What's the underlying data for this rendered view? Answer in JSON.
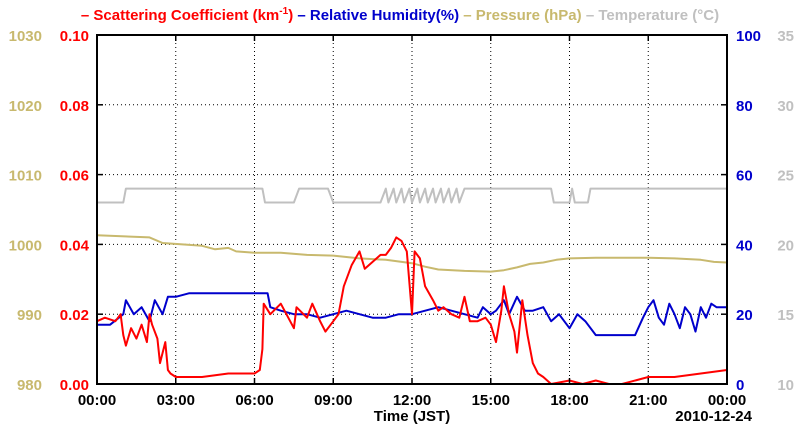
{
  "chart_data": {
    "type": "line",
    "title": "",
    "date_label": "2010-12-24",
    "xlabel": "Time (JST)",
    "x_ticks": [
      "00:00",
      "03:00",
      "06:00",
      "09:00",
      "12:00",
      "15:00",
      "18:00",
      "21:00",
      "00:00"
    ],
    "xlim_hours": [
      0,
      24
    ],
    "legend": [
      {
        "name": "Scattering Coefficient (km",
        "sup": "-1",
        "suffix": ")",
        "color": "#ff0000"
      },
      {
        "name": "Relative Humidity(%)",
        "color": "#0000cc"
      },
      {
        "name": "Pressure (hPa)",
        "color": "#c8b96e"
      },
      {
        "name": "Temperature (°C)",
        "color": "#c0c0c0"
      }
    ],
    "axes": {
      "pressure": {
        "side": "left-outer",
        "ticks": [
          "1030",
          "1020",
          "1010",
          "1000",
          "990",
          "980"
        ],
        "ylim": [
          980,
          1030
        ],
        "color": "#c8b96e"
      },
      "scattering": {
        "side": "left-inner",
        "ticks": [
          "0.10",
          "0.08",
          "0.06",
          "0.04",
          "0.02",
          "0.00"
        ],
        "ylim": [
          0,
          0.1
        ],
        "color": "#ff0000"
      },
      "humidity": {
        "side": "right-inner",
        "ticks": [
          "100",
          "80",
          "60",
          "40",
          "20",
          "0"
        ],
        "ylim": [
          0,
          100
        ],
        "color": "#0000cc"
      },
      "temperature": {
        "side": "right-outer",
        "ticks": [
          "35",
          "30",
          "25",
          "20",
          "15",
          "10"
        ],
        "ylim": [
          10,
          35
        ],
        "color": "#c0c0c0"
      }
    },
    "series": [
      {
        "name": "Scattering Coefficient",
        "axis": "scattering",
        "color": "#ff0000",
        "points": [
          [
            0,
            0.018
          ],
          [
            0.3,
            0.019
          ],
          [
            0.7,
            0.018
          ],
          [
            0.9,
            0.02
          ],
          [
            1.0,
            0.014
          ],
          [
            1.1,
            0.011
          ],
          [
            1.3,
            0.016
          ],
          [
            1.5,
            0.013
          ],
          [
            1.7,
            0.017
          ],
          [
            1.9,
            0.012
          ],
          [
            2.0,
            0.02
          ],
          [
            2.1,
            0.017
          ],
          [
            2.3,
            0.013
          ],
          [
            2.4,
            0.006
          ],
          [
            2.6,
            0.012
          ],
          [
            2.7,
            0.004
          ],
          [
            2.8,
            0.003
          ],
          [
            3.0,
            0.002
          ],
          [
            4.0,
            0.002
          ],
          [
            5.0,
            0.003
          ],
          [
            6.0,
            0.003
          ],
          [
            6.2,
            0.004
          ],
          [
            6.3,
            0.01
          ],
          [
            6.35,
            0.023
          ],
          [
            6.6,
            0.02
          ],
          [
            7.0,
            0.023
          ],
          [
            7.5,
            0.016
          ],
          [
            7.6,
            0.022
          ],
          [
            8.0,
            0.019
          ],
          [
            8.2,
            0.023
          ],
          [
            8.5,
            0.018
          ],
          [
            8.7,
            0.015
          ],
          [
            9.0,
            0.018
          ],
          [
            9.2,
            0.02
          ],
          [
            9.4,
            0.028
          ],
          [
            9.7,
            0.034
          ],
          [
            10.0,
            0.038
          ],
          [
            10.2,
            0.033
          ],
          [
            10.5,
            0.035
          ],
          [
            10.8,
            0.037
          ],
          [
            11.0,
            0.037
          ],
          [
            11.2,
            0.039
          ],
          [
            11.4,
            0.042
          ],
          [
            11.6,
            0.041
          ],
          [
            11.8,
            0.038
          ],
          [
            12.0,
            0.02
          ],
          [
            12.1,
            0.038
          ],
          [
            12.3,
            0.036
          ],
          [
            12.5,
            0.028
          ],
          [
            12.8,
            0.024
          ],
          [
            13.0,
            0.021
          ],
          [
            13.2,
            0.022
          ],
          [
            13.5,
            0.02
          ],
          [
            13.8,
            0.019
          ],
          [
            14.0,
            0.025
          ],
          [
            14.2,
            0.018
          ],
          [
            14.5,
            0.018
          ],
          [
            14.8,
            0.019
          ],
          [
            15.0,
            0.017
          ],
          [
            15.2,
            0.012
          ],
          [
            15.4,
            0.021
          ],
          [
            15.5,
            0.028
          ],
          [
            15.7,
            0.02
          ],
          [
            15.9,
            0.015
          ],
          [
            16.0,
            0.009
          ],
          [
            16.2,
            0.024
          ],
          [
            16.4,
            0.014
          ],
          [
            16.6,
            0.006
          ],
          [
            16.8,
            0.003
          ],
          [
            17.0,
            0.002
          ],
          [
            17.3,
            0.0
          ],
          [
            18.0,
            0.001
          ],
          [
            18.5,
            0.0
          ],
          [
            19.0,
            0.001
          ],
          [
            19.5,
            0.0
          ],
          [
            20.0,
            0.0
          ],
          [
            21.0,
            0.002
          ],
          [
            22.0,
            0.002
          ],
          [
            23.0,
            0.003
          ],
          [
            24.0,
            0.004
          ]
        ]
      },
      {
        "name": "Relative Humidity",
        "axis": "humidity",
        "color": "#0000cc",
        "points": [
          [
            0,
            17
          ],
          [
            0.5,
            17
          ],
          [
            1.0,
            20
          ],
          [
            1.1,
            24
          ],
          [
            1.4,
            20
          ],
          [
            1.7,
            22
          ],
          [
            2.0,
            18
          ],
          [
            2.2,
            24
          ],
          [
            2.5,
            20
          ],
          [
            2.7,
            25
          ],
          [
            3.0,
            25
          ],
          [
            3.5,
            26
          ],
          [
            4.0,
            26
          ],
          [
            5.0,
            26
          ],
          [
            6.0,
            26
          ],
          [
            6.5,
            26
          ],
          [
            6.6,
            22
          ],
          [
            7.0,
            21
          ],
          [
            7.5,
            20
          ],
          [
            8.0,
            20
          ],
          [
            8.5,
            19
          ],
          [
            9.0,
            20
          ],
          [
            9.5,
            21
          ],
          [
            10.0,
            20
          ],
          [
            10.5,
            19
          ],
          [
            11.0,
            19
          ],
          [
            11.5,
            20
          ],
          [
            12.0,
            20
          ],
          [
            12.5,
            21
          ],
          [
            13.0,
            22
          ],
          [
            13.5,
            21
          ],
          [
            14.0,
            20
          ],
          [
            14.5,
            19
          ],
          [
            14.7,
            22
          ],
          [
            15.0,
            20
          ],
          [
            15.2,
            21
          ],
          [
            15.5,
            24
          ],
          [
            15.7,
            20
          ],
          [
            16.0,
            25
          ],
          [
            16.3,
            21
          ],
          [
            16.6,
            21
          ],
          [
            17.0,
            22
          ],
          [
            17.3,
            18
          ],
          [
            17.6,
            20
          ],
          [
            18.0,
            16
          ],
          [
            18.3,
            20
          ],
          [
            18.6,
            18
          ],
          [
            19.0,
            14
          ],
          [
            19.2,
            14
          ],
          [
            20.0,
            14
          ],
          [
            20.5,
            14
          ],
          [
            20.8,
            19
          ],
          [
            21.0,
            22
          ],
          [
            21.2,
            24
          ],
          [
            21.4,
            19
          ],
          [
            21.6,
            17
          ],
          [
            21.8,
            23
          ],
          [
            22.0,
            20
          ],
          [
            22.2,
            16
          ],
          [
            22.4,
            22
          ],
          [
            22.6,
            20
          ],
          [
            22.8,
            15
          ],
          [
            23.0,
            22
          ],
          [
            23.2,
            19
          ],
          [
            23.4,
            23
          ],
          [
            23.6,
            22
          ],
          [
            24.0,
            22
          ]
        ]
      },
      {
        "name": "Pressure",
        "axis": "pressure",
        "color": "#c8b96e",
        "points": [
          [
            0,
            1001.3
          ],
          [
            2.0,
            1001.0
          ],
          [
            2.5,
            1000.2
          ],
          [
            4.0,
            999.8
          ],
          [
            4.5,
            999.3
          ],
          [
            5.0,
            999.5
          ],
          [
            5.3,
            999.0
          ],
          [
            6.0,
            998.8
          ],
          [
            7.0,
            998.8
          ],
          [
            8.0,
            998.5
          ],
          [
            9.0,
            998.4
          ],
          [
            10.0,
            998.0
          ],
          [
            11.0,
            997.8
          ],
          [
            12.0,
            997.3
          ],
          [
            12.5,
            996.8
          ],
          [
            13.0,
            996.4
          ],
          [
            14.0,
            996.2
          ],
          [
            15.0,
            996.1
          ],
          [
            15.5,
            996.3
          ],
          [
            16.0,
            996.7
          ],
          [
            16.5,
            997.2
          ],
          [
            17.0,
            997.4
          ],
          [
            17.5,
            997.8
          ],
          [
            18.0,
            998.0
          ],
          [
            19.0,
            998.1
          ],
          [
            20.0,
            998.1
          ],
          [
            21.0,
            998.1
          ],
          [
            22.0,
            998.0
          ],
          [
            23.0,
            997.8
          ],
          [
            23.5,
            997.5
          ],
          [
            24.0,
            997.4
          ]
        ]
      },
      {
        "name": "Temperature",
        "axis": "temperature",
        "color": "#c0c0c0",
        "points": [
          [
            0,
            23.0
          ],
          [
            1.0,
            23.0
          ],
          [
            1.1,
            24.0
          ],
          [
            6.3,
            24.0
          ],
          [
            6.4,
            23.0
          ],
          [
            7.5,
            23.0
          ],
          [
            7.7,
            24.0
          ],
          [
            8.8,
            24.0
          ],
          [
            9.0,
            23.0
          ],
          [
            10.8,
            23.0
          ],
          [
            11.0,
            24.0
          ],
          [
            11.1,
            23.0
          ],
          [
            11.3,
            24.0
          ],
          [
            11.4,
            23.0
          ],
          [
            11.6,
            24.0
          ],
          [
            11.7,
            23.0
          ],
          [
            11.9,
            24.0
          ],
          [
            12.0,
            23.0
          ],
          [
            12.2,
            24.0
          ],
          [
            12.3,
            23.0
          ],
          [
            12.5,
            24.0
          ],
          [
            12.6,
            23.0
          ],
          [
            12.8,
            24.0
          ],
          [
            12.9,
            23.0
          ],
          [
            13.1,
            24.0
          ],
          [
            13.2,
            23.0
          ],
          [
            13.4,
            24.0
          ],
          [
            13.5,
            23.0
          ],
          [
            13.7,
            24.0
          ],
          [
            13.8,
            23.0
          ],
          [
            14.0,
            24.0
          ],
          [
            17.3,
            24.0
          ],
          [
            17.4,
            23.0
          ],
          [
            18.0,
            23.0
          ],
          [
            18.1,
            24.0
          ],
          [
            18.2,
            23.0
          ],
          [
            18.7,
            23.0
          ],
          [
            18.8,
            24.0
          ],
          [
            24.0,
            24.0
          ]
        ]
      }
    ]
  }
}
